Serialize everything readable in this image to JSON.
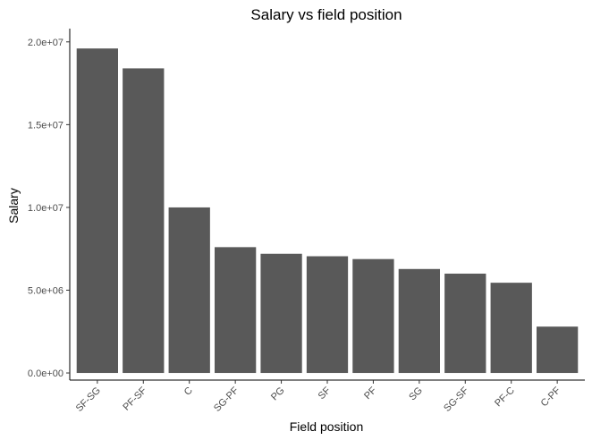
{
  "chart_data": {
    "type": "bar",
    "title": "Salary vs field position",
    "xlabel": "Field position",
    "ylabel": "Salary",
    "categories": [
      "SF-SG",
      "PF-SF",
      "C",
      "SG-PF",
      "PG",
      "SF",
      "PF",
      "SG",
      "SG-SF",
      "PF-C",
      "C-PF"
    ],
    "values": [
      19600000,
      18400000,
      10000000,
      7600000,
      7200000,
      7050000,
      6880000,
      6280000,
      6000000,
      5450000,
      2800000
    ],
    "ylim": [
      -430000,
      20800000
    ],
    "yticks": [
      0,
      5000000,
      10000000,
      15000000,
      20000000
    ],
    "ytick_labels": [
      "0.0e+00",
      "5.0e+06",
      "1.0e+07",
      "1.5e+07",
      "2.0e+07"
    ],
    "grid": false,
    "legend": "none",
    "bar_color": "#595959",
    "x_tick_rotation": 45
  }
}
